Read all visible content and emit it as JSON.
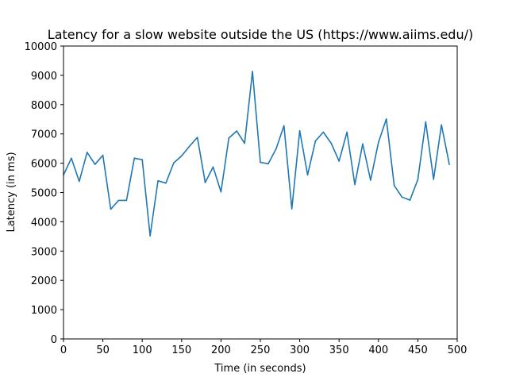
{
  "chart_data": {
    "type": "line",
    "title": "Latency for a slow website outside the US (https://www.aiims.edu/)",
    "xlabel": "Time (in seconds)",
    "ylabel": "Latency (in ms)",
    "xlim": [
      0,
      500
    ],
    "ylim": [
      0,
      10000
    ],
    "xticks": [
      0,
      50,
      100,
      150,
      200,
      250,
      300,
      350,
      400,
      450,
      500
    ],
    "yticks": [
      0,
      1000,
      2000,
      3000,
      4000,
      5000,
      6000,
      7000,
      8000,
      9000,
      10000
    ],
    "grid": false,
    "series": [
      {
        "color": "#1f77b4",
        "x": [
          0,
          10,
          20,
          30,
          40,
          50,
          60,
          70,
          80,
          90,
          100,
          110,
          120,
          130,
          140,
          150,
          160,
          170,
          180,
          190,
          200,
          210,
          220,
          230,
          240,
          250,
          260,
          270,
          280,
          290,
          300,
          310,
          320,
          330,
          340,
          350,
          360,
          370,
          380,
          390,
          400,
          410,
          420,
          430,
          440,
          450,
          460,
          470,
          480,
          490
        ],
        "values": [
          5600,
          6170,
          5380,
          6370,
          5960,
          6270,
          4430,
          4730,
          4730,
          6170,
          6120,
          3520,
          5400,
          5320,
          6010,
          6250,
          6580,
          6880,
          5340,
          5870,
          5020,
          6860,
          7100,
          6680,
          9130,
          6030,
          5980,
          6490,
          7280,
          4440,
          7110,
          5600,
          6760,
          7060,
          6680,
          6070,
          7060,
          5270,
          6660,
          5420,
          6710,
          7510,
          5240,
          4840,
          4740,
          5440,
          7410,
          5450,
          7310,
          5960
        ]
      }
    ]
  }
}
